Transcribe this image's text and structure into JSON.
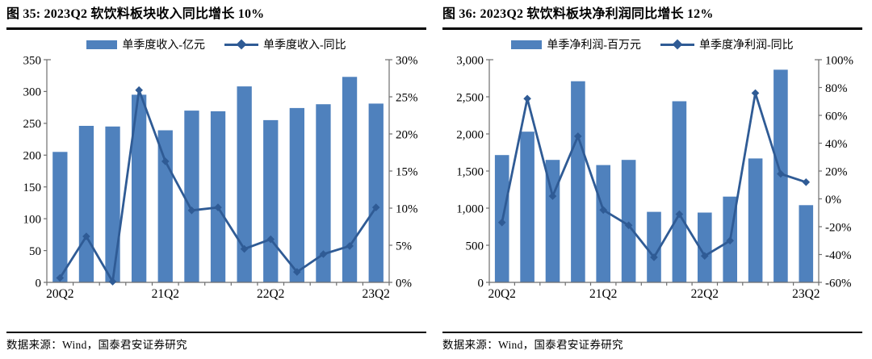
{
  "panels": [
    {
      "title": "图 35:  2023Q2 软饮料板块收入同比增长 10%",
      "source": "数据来源：Wind，国泰君安证券研究"
    },
    {
      "title": "图 36:  2023Q2 软饮料板块净利润同比增长 12%",
      "source": "数据来源：Wind，国泰君安证券研究"
    }
  ],
  "chart_data": [
    {
      "type": "bar",
      "subtype": "bar+line dual axis",
      "title": "图 35: 2023Q2 软饮料板块收入同比增长 10%",
      "categories": [
        "20Q2",
        "20Q3",
        "20Q4",
        "21Q1",
        "21Q2",
        "21Q3",
        "21Q4",
        "22Q1",
        "22Q2",
        "22Q3",
        "22Q4",
        "23Q1",
        "23Q2"
      ],
      "x_tick_labels_shown": [
        "20Q2",
        "21Q2",
        "22Q2",
        "23Q2"
      ],
      "series": [
        {
          "name": "单季度收入-亿元",
          "type": "bar",
          "axis": "left",
          "values": [
            205,
            246,
            245,
            295,
            239,
            270,
            269,
            308,
            255,
            274,
            280,
            323,
            281
          ]
        },
        {
          "name": "单季度收入-同比",
          "type": "line",
          "axis": "right",
          "values": [
            0.6,
            6.2,
            0.1,
            25.9,
            16.3,
            9.7,
            10.1,
            4.5,
            5.8,
            1.4,
            3.8,
            4.9,
            10.1
          ]
        }
      ],
      "left_axis": {
        "min": 0,
        "max": 350,
        "step": 50,
        "labels": [
          "0",
          "50",
          "100",
          "150",
          "200",
          "250",
          "300",
          "350"
        ]
      },
      "right_axis": {
        "min": 0,
        "max": 30,
        "step": 5,
        "labels": [
          "0%",
          "5%",
          "10%",
          "15%",
          "20%",
          "25%",
          "30%"
        ]
      },
      "legend_position": "top",
      "grid": false,
      "colors": {
        "bar": "#4F81BD",
        "line": "#2F5B95"
      }
    },
    {
      "type": "bar",
      "subtype": "bar+line dual axis",
      "title": "图 36: 2023Q2 软饮料板块净利润同比增长 12%",
      "categories": [
        "20Q2",
        "20Q3",
        "20Q4",
        "21Q1",
        "21Q2",
        "21Q3",
        "21Q4",
        "22Q1",
        "22Q2",
        "22Q3",
        "22Q4",
        "23Q1",
        "23Q2"
      ],
      "x_tick_labels_shown": [
        "20Q2",
        "21Q2",
        "22Q2",
        "23Q2"
      ],
      "series": [
        {
          "name": "单季净利润-百万元",
          "type": "bar",
          "axis": "left",
          "values": [
            1715,
            2030,
            1650,
            2710,
            1580,
            1650,
            950,
            2440,
            940,
            1155,
            1670,
            2865,
            1040
          ]
        },
        {
          "name": "单季度净利润-同比",
          "type": "line",
          "axis": "right",
          "values": [
            -17,
            72,
            2,
            45,
            -8,
            -19,
            -42,
            -11,
            -41,
            -30,
            76,
            18,
            12
          ]
        }
      ],
      "left_axis": {
        "min": 0,
        "max": 3000,
        "step": 500,
        "labels": [
          "0",
          "500",
          "1,000",
          "1,500",
          "2,000",
          "2,500",
          "3,000"
        ]
      },
      "right_axis": {
        "min": -60,
        "max": 100,
        "step": 20,
        "labels": [
          "-60%",
          "-40%",
          "-20%",
          "0%",
          "20%",
          "40%",
          "60%",
          "80%",
          "100%"
        ]
      },
      "legend_position": "top",
      "grid": false,
      "colors": {
        "bar": "#4F81BD",
        "line": "#2F5B95"
      }
    }
  ]
}
